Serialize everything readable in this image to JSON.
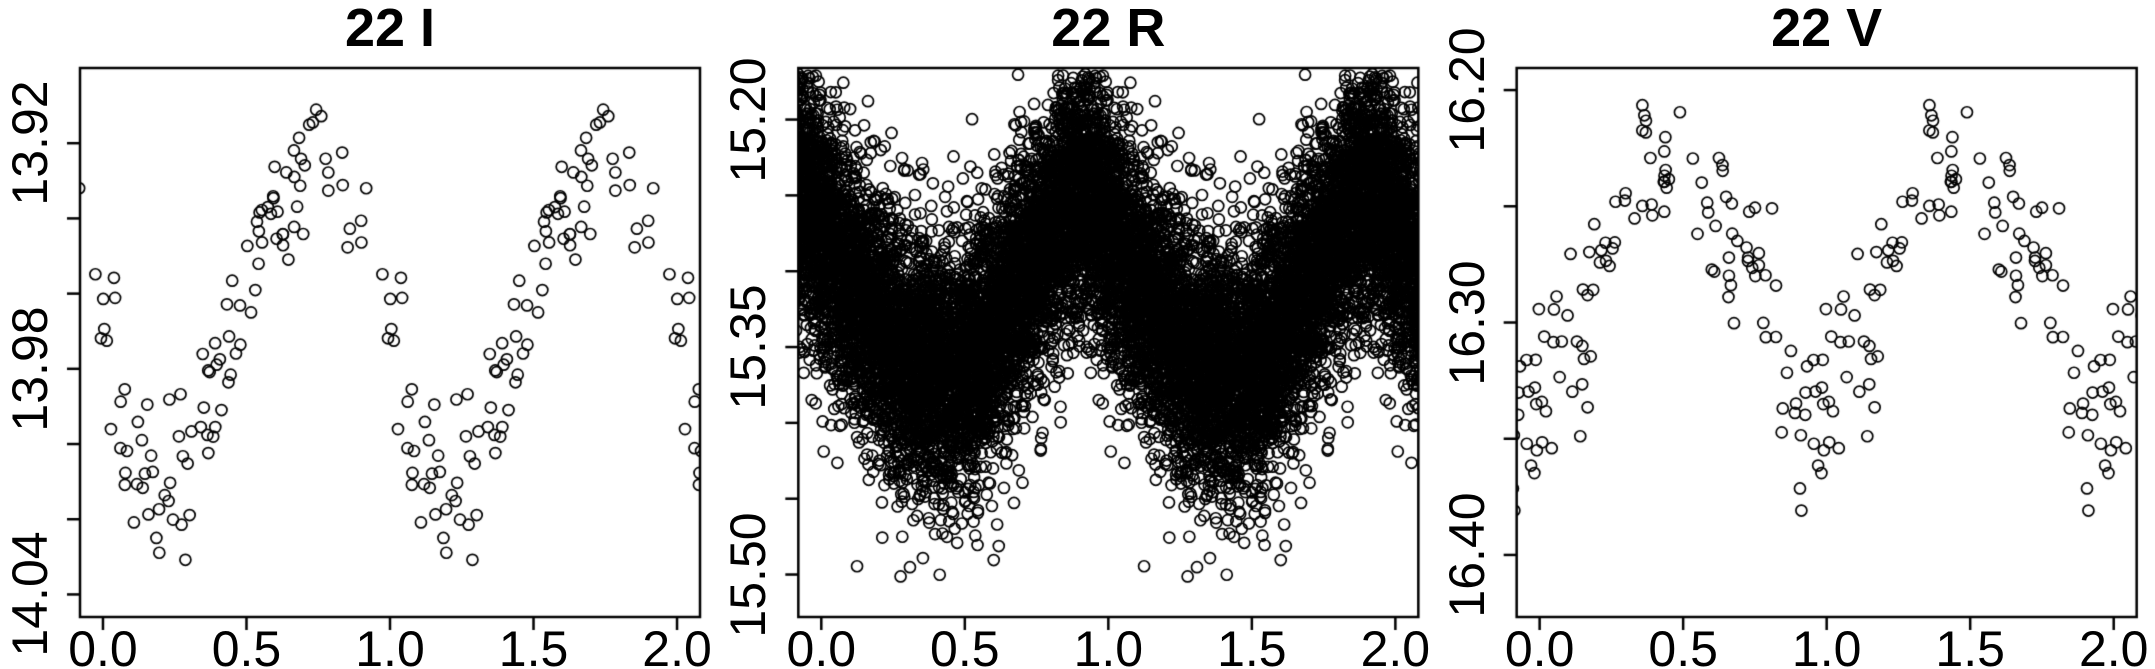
{
  "figure": {
    "background": "#ffffff",
    "point_color": "#000000",
    "axis_color": "#000000",
    "marker": "open-circle",
    "description": "Three phased light-curve scatter panels of star 22 in bands I, R and V; phase 0-1 data duplicated over phase 1-2; magnitude axis inverted (bright up)."
  },
  "chart_data": [
    {
      "type": "scatter",
      "title": "22 I",
      "star": "22",
      "band": "I",
      "x_range": [
        0.0,
        2.0
      ],
      "x_pad": 0.08,
      "ylim_top": 13.9,
      "ylim_bottom": 14.046,
      "yticks": [
        {
          "v": 13.92,
          "label": "13.92"
        },
        {
          "v": 13.94,
          "label": ""
        },
        {
          "v": 13.96,
          "label": ""
        },
        {
          "v": 13.98,
          "label": "13.98"
        },
        {
          "v": 14.0,
          "label": ""
        },
        {
          "v": 14.02,
          "label": ""
        },
        {
          "v": 14.04,
          "label": "14.04"
        }
      ],
      "xticks": [
        {
          "v": 0.0,
          "label": "0.0"
        },
        {
          "v": 0.5,
          "label": "0.5"
        },
        {
          "v": 1.0,
          "label": "1.0"
        },
        {
          "v": 1.5,
          "label": "1.5"
        },
        {
          "v": 2.0,
          "label": "2.0"
        }
      ],
      "n_points_per_cycle": 105,
      "duplicated_phase": true,
      "mean_curve": [
        [
          0.0,
          13.968
        ],
        [
          0.04,
          13.985
        ],
        [
          0.08,
          13.997
        ],
        [
          0.13,
          14.006
        ],
        [
          0.18,
          14.011
        ],
        [
          0.24,
          14.011
        ],
        [
          0.3,
          14.004
        ],
        [
          0.36,
          13.993
        ],
        [
          0.42,
          13.978
        ],
        [
          0.48,
          13.96
        ],
        [
          0.54,
          13.946
        ],
        [
          0.6,
          13.937
        ],
        [
          0.66,
          13.931
        ],
        [
          0.72,
          13.928
        ],
        [
          0.78,
          13.929
        ],
        [
          0.84,
          13.933
        ],
        [
          0.9,
          13.94
        ],
        [
          0.95,
          13.951
        ],
        [
          1.0,
          13.968
        ]
      ],
      "sigma": 0.011,
      "outlier_frac": 0.03,
      "outlier_sigma_mult": 1.8,
      "mag_clamp": [
        13.906,
        14.042
      ],
      "marker_radius": 5.5,
      "seed": 101
    },
    {
      "type": "scatter",
      "title": "22 R",
      "star": "22",
      "band": "R",
      "x_range": [
        0.0,
        2.0
      ],
      "x_pad": 0.08,
      "ylim_top": 15.166,
      "ylim_bottom": 15.528,
      "yticks": [
        {
          "v": 15.2,
          "label": "15.20"
        },
        {
          "v": 15.25,
          "label": ""
        },
        {
          "v": 15.3,
          "label": ""
        },
        {
          "v": 15.35,
          "label": "15.35"
        },
        {
          "v": 15.4,
          "label": ""
        },
        {
          "v": 15.45,
          "label": ""
        },
        {
          "v": 15.5,
          "label": "15.50"
        }
      ],
      "xticks": [
        {
          "v": 0.0,
          "label": "0.0"
        },
        {
          "v": 0.5,
          "label": "0.5"
        },
        {
          "v": 1.0,
          "label": "1.0"
        },
        {
          "v": 1.5,
          "label": "1.5"
        },
        {
          "v": 2.0,
          "label": "2.0"
        }
      ],
      "n_points_per_cycle": 6500,
      "duplicated_phase": true,
      "mean_curve": [
        [
          0.0,
          15.272
        ],
        [
          0.06,
          15.292
        ],
        [
          0.12,
          15.312
        ],
        [
          0.2,
          15.336
        ],
        [
          0.28,
          15.352
        ],
        [
          0.36,
          15.364
        ],
        [
          0.44,
          15.368
        ],
        [
          0.5,
          15.362
        ],
        [
          0.56,
          15.348
        ],
        [
          0.62,
          15.33
        ],
        [
          0.68,
          15.312
        ],
        [
          0.74,
          15.292
        ],
        [
          0.8,
          15.272
        ],
        [
          0.85,
          15.256
        ],
        [
          0.9,
          15.245
        ],
        [
          0.94,
          15.248
        ],
        [
          0.97,
          15.258
        ],
        [
          1.0,
          15.272
        ]
      ],
      "sigma": 0.042,
      "outlier_frac": 0.015,
      "outlier_sigma_mult": 1.9,
      "mag_clamp": [
        15.17,
        15.522
      ],
      "marker_radius": 5.5,
      "seed": 77
    },
    {
      "type": "scatter",
      "title": "22 V",
      "star": "22",
      "band": "V",
      "x_range": [
        0.0,
        2.0
      ],
      "x_pad": 0.08,
      "ylim_top": 16.1905,
      "ylim_bottom": 16.4267,
      "yticks": [
        {
          "v": 16.2,
          "label": "16.20"
        },
        {
          "v": 16.25,
          "label": ""
        },
        {
          "v": 16.3,
          "label": "16.30"
        },
        {
          "v": 16.35,
          "label": ""
        },
        {
          "v": 16.4,
          "label": "16.40"
        }
      ],
      "xticks": [
        {
          "v": 0.0,
          "label": "0.0"
        },
        {
          "v": 0.5,
          "label": "0.5"
        },
        {
          "v": 1.0,
          "label": "1.0"
        },
        {
          "v": 1.5,
          "label": "1.5"
        },
        {
          "v": 2.0,
          "label": "2.0"
        }
      ],
      "n_points_per_cycle": 112,
      "duplicated_phase": true,
      "mean_curve": [
        [
          0.0,
          16.33
        ],
        [
          0.05,
          16.318
        ],
        [
          0.1,
          16.306
        ],
        [
          0.16,
          16.294
        ],
        [
          0.22,
          16.278
        ],
        [
          0.28,
          16.258
        ],
        [
          0.34,
          16.24
        ],
        [
          0.4,
          16.228
        ],
        [
          0.46,
          16.235
        ],
        [
          0.52,
          16.248
        ],
        [
          0.58,
          16.252
        ],
        [
          0.64,
          16.248
        ],
        [
          0.7,
          16.258
        ],
        [
          0.76,
          16.278
        ],
        [
          0.82,
          16.302
        ],
        [
          0.88,
          16.328
        ],
        [
          0.93,
          16.348
        ],
        [
          0.97,
          16.345
        ],
        [
          1.0,
          16.33
        ]
      ],
      "sigma": 0.02,
      "outlier_frac": 0.06,
      "outlier_sigma_mult": 1.9,
      "mag_clamp": [
        16.198,
        16.422
      ],
      "marker_radius": 5.5,
      "seed": 303
    }
  ]
}
